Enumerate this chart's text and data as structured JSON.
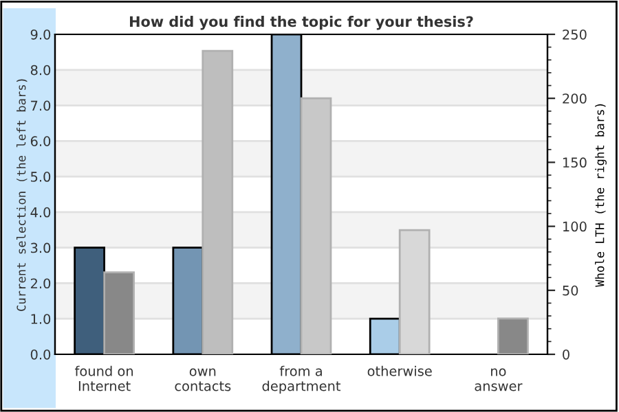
{
  "chart_data": {
    "type": "bar",
    "title": "How did you find the topic for your thesis?",
    "categories": [
      "found on\nInternet",
      "own\ncontacts",
      "from a\ndepartment",
      "otherwise",
      "no\nanswer"
    ],
    "series": [
      {
        "axis": "y",
        "colors": [
          "#3f5f7c",
          "#7395b3",
          "#8fb0cc",
          "#aacde8",
          "#aacde8"
        ],
        "values": [
          3,
          3,
          9,
          1,
          null
        ]
      },
      {
        "axis": "y2",
        "colors": [
          "#888888",
          "#bebebe",
          "#c8c8c8",
          "#d8d8d8",
          "#888888"
        ],
        "values": [
          64,
          237,
          200,
          97,
          28
        ]
      }
    ],
    "ylabel": "Current selection (the left bars)",
    "y2label": "Whole LTH (the right bars)",
    "ylim": [
      0,
      9
    ],
    "yticks": [
      {
        "value": 0,
        "label": "0.0"
      },
      {
        "value": 1,
        "label": "1.0"
      },
      {
        "value": 2,
        "label": "2.0"
      },
      {
        "value": 3,
        "label": "3.0"
      },
      {
        "value": 4,
        "label": "4.0"
      },
      {
        "value": 5,
        "label": "5.0"
      },
      {
        "value": 6,
        "label": "6.0"
      },
      {
        "value": 7,
        "label": "7.0"
      },
      {
        "value": 8,
        "label": "8.0"
      },
      {
        "value": 9,
        "label": "9.0"
      }
    ],
    "y2lim": [
      0,
      250
    ],
    "y2ticks": [
      0,
      50,
      100,
      150,
      200,
      250
    ],
    "grid": "y",
    "bands": [
      {
        "axis": "y",
        "from": 1,
        "to": 2,
        "color": "#f3f3f3"
      },
      {
        "axis": "y",
        "from": 3,
        "to": 4,
        "color": "#f3f3f3"
      },
      {
        "axis": "y",
        "from": 5,
        "to": 6,
        "color": "#f3f3f3"
      },
      {
        "axis": "y",
        "from": 7,
        "to": 8,
        "color": "#f3f3f3"
      }
    ]
  }
}
